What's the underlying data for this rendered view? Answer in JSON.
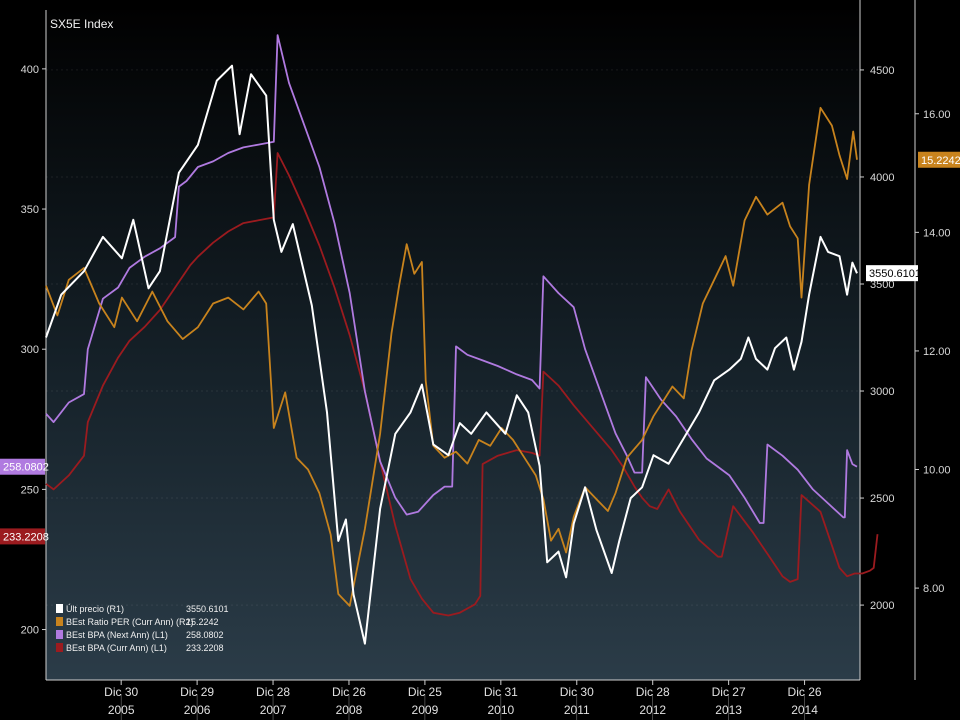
{
  "chart_data": {
    "type": "line",
    "title": "SX5E Index",
    "x_ticks": [
      {
        "label": "Dic 30",
        "year": "2005"
      },
      {
        "label": "Dic 29",
        "year": "2006"
      },
      {
        "label": "Dic 28",
        "year": "2007"
      },
      {
        "label": "Dic 26",
        "year": "2008"
      },
      {
        "label": "Dic 25",
        "year": "2009"
      },
      {
        "label": "Dic 31",
        "year": "2010"
      },
      {
        "label": "Dic 30",
        "year": "2011"
      },
      {
        "label": "Dic 28",
        "year": "2012"
      },
      {
        "label": "Dic 27",
        "year": "2013"
      },
      {
        "label": "Dic 26",
        "year": "2014"
      }
    ],
    "axes": {
      "L1": {
        "ticks": [
          200,
          250,
          300,
          350,
          400
        ],
        "range": [
          182,
          421
        ]
      },
      "R1": {
        "ticks": [
          2000,
          2500,
          3000,
          3500,
          4000,
          4500
        ],
        "range": [
          1650,
          4780
        ]
      },
      "R2": {
        "ticks": [
          "8.00",
          "10.00",
          "12.00",
          "14.00",
          "16.00"
        ],
        "range": [
          6.45,
          17.75
        ]
      }
    },
    "series": [
      {
        "name": "Últ precio",
        "axis": "R1",
        "color": "#ffffff",
        "last_value": "3550.6101",
        "points": [
          [
            2005.0,
            3250
          ],
          [
            2005.2,
            3450
          ],
          [
            2005.5,
            3560
          ],
          [
            2005.75,
            3720
          ],
          [
            2006.0,
            3620
          ],
          [
            2006.15,
            3800
          ],
          [
            2006.35,
            3480
          ],
          [
            2006.5,
            3560
          ],
          [
            2006.75,
            4020
          ],
          [
            2007.0,
            4150
          ],
          [
            2007.25,
            4450
          ],
          [
            2007.45,
            4520
          ],
          [
            2007.55,
            4200
          ],
          [
            2007.7,
            4480
          ],
          [
            2007.9,
            4380
          ],
          [
            2008.0,
            3800
          ],
          [
            2008.1,
            3650
          ],
          [
            2008.25,
            3780
          ],
          [
            2008.5,
            3400
          ],
          [
            2008.7,
            2900
          ],
          [
            2008.85,
            2300
          ],
          [
            2008.95,
            2400
          ],
          [
            2009.05,
            2050
          ],
          [
            2009.2,
            1820
          ],
          [
            2009.4,
            2450
          ],
          [
            2009.6,
            2800
          ],
          [
            2009.8,
            2900
          ],
          [
            2009.95,
            3030
          ],
          [
            2010.1,
            2750
          ],
          [
            2010.3,
            2700
          ],
          [
            2010.45,
            2850
          ],
          [
            2010.6,
            2800
          ],
          [
            2010.8,
            2900
          ],
          [
            2011.05,
            2800
          ],
          [
            2011.2,
            2980
          ],
          [
            2011.35,
            2900
          ],
          [
            2011.5,
            2650
          ],
          [
            2011.6,
            2200
          ],
          [
            2011.75,
            2250
          ],
          [
            2011.85,
            2130
          ],
          [
            2011.95,
            2380
          ],
          [
            2012.1,
            2550
          ],
          [
            2012.25,
            2350
          ],
          [
            2012.45,
            2150
          ],
          [
            2012.55,
            2300
          ],
          [
            2012.7,
            2500
          ],
          [
            2012.85,
            2550
          ],
          [
            2013.0,
            2700
          ],
          [
            2013.2,
            2660
          ],
          [
            2013.4,
            2780
          ],
          [
            2013.6,
            2900
          ],
          [
            2013.8,
            3050
          ],
          [
            2014.0,
            3100
          ],
          [
            2014.15,
            3150
          ],
          [
            2014.25,
            3250
          ],
          [
            2014.35,
            3150
          ],
          [
            2014.5,
            3100
          ],
          [
            2014.6,
            3200
          ],
          [
            2014.75,
            3250
          ],
          [
            2014.85,
            3100
          ],
          [
            2014.95,
            3230
          ],
          [
            2015.05,
            3450
          ],
          [
            2015.2,
            3720
          ],
          [
            2015.3,
            3650
          ],
          [
            2015.45,
            3630
          ],
          [
            2015.55,
            3450
          ],
          [
            2015.62,
            3600
          ],
          [
            2015.68,
            3550
          ]
        ]
      },
      {
        "name": "BEst Ratio PER (Curr Ann)",
        "axis": "R2",
        "color": "#c8831d",
        "last_value": "15.2242",
        "points": [
          [
            2005.0,
            13.1
          ],
          [
            2005.15,
            12.6
          ],
          [
            2005.3,
            13.2
          ],
          [
            2005.5,
            13.4
          ],
          [
            2005.7,
            12.8
          ],
          [
            2005.9,
            12.4
          ],
          [
            2006.0,
            12.9
          ],
          [
            2006.2,
            12.5
          ],
          [
            2006.4,
            13.0
          ],
          [
            2006.6,
            12.5
          ],
          [
            2006.8,
            12.2
          ],
          [
            2007.0,
            12.4
          ],
          [
            2007.2,
            12.8
          ],
          [
            2007.4,
            12.9
          ],
          [
            2007.6,
            12.7
          ],
          [
            2007.8,
            13.0
          ],
          [
            2007.9,
            12.8
          ],
          [
            2008.0,
            10.7
          ],
          [
            2008.15,
            11.3
          ],
          [
            2008.3,
            10.2
          ],
          [
            2008.45,
            10.0
          ],
          [
            2008.6,
            9.6
          ],
          [
            2008.75,
            8.9
          ],
          [
            2008.85,
            7.9
          ],
          [
            2009.0,
            7.7
          ],
          [
            2009.2,
            9.0
          ],
          [
            2009.4,
            10.6
          ],
          [
            2009.55,
            12.3
          ],
          [
            2009.65,
            13.1
          ],
          [
            2009.75,
            13.8
          ],
          [
            2009.85,
            13.3
          ],
          [
            2009.95,
            13.5
          ],
          [
            2010.0,
            11.5
          ],
          [
            2010.1,
            10.4
          ],
          [
            2010.25,
            10.2
          ],
          [
            2010.4,
            10.3
          ],
          [
            2010.55,
            10.1
          ],
          [
            2010.7,
            10.5
          ],
          [
            2010.85,
            10.4
          ],
          [
            2011.0,
            10.7
          ],
          [
            2011.15,
            10.5
          ],
          [
            2011.3,
            10.2
          ],
          [
            2011.45,
            9.9
          ],
          [
            2011.55,
            9.5
          ],
          [
            2011.65,
            8.8
          ],
          [
            2011.75,
            9.0
          ],
          [
            2011.85,
            8.6
          ],
          [
            2011.95,
            9.2
          ],
          [
            2012.1,
            9.7
          ],
          [
            2012.25,
            9.5
          ],
          [
            2012.4,
            9.3
          ],
          [
            2012.5,
            9.6
          ],
          [
            2012.65,
            10.2
          ],
          [
            2012.85,
            10.5
          ],
          [
            2013.0,
            10.9
          ],
          [
            2013.1,
            11.1
          ],
          [
            2013.25,
            11.4
          ],
          [
            2013.4,
            11.2
          ],
          [
            2013.5,
            12.0
          ],
          [
            2013.65,
            12.8
          ],
          [
            2013.8,
            13.2
          ],
          [
            2013.95,
            13.6
          ],
          [
            2014.05,
            13.1
          ],
          [
            2014.2,
            14.2
          ],
          [
            2014.35,
            14.6
          ],
          [
            2014.5,
            14.3
          ],
          [
            2014.7,
            14.5
          ],
          [
            2014.8,
            14.1
          ],
          [
            2014.9,
            13.9
          ],
          [
            2014.95,
            12.9
          ],
          [
            2015.05,
            14.8
          ],
          [
            2015.2,
            16.1
          ],
          [
            2015.35,
            15.8
          ],
          [
            2015.45,
            15.3
          ],
          [
            2015.55,
            14.9
          ],
          [
            2015.63,
            15.7
          ],
          [
            2015.68,
            15.2242
          ]
        ]
      },
      {
        "name": "BEst BPA (Next Ann)",
        "axis": "L1",
        "color": "#b07ae0",
        "last_value": "258.0802",
        "points": [
          [
            2005.0,
            277
          ],
          [
            2005.1,
            274
          ],
          [
            2005.3,
            281
          ],
          [
            2005.5,
            284
          ],
          [
            2005.55,
            300
          ],
          [
            2005.75,
            318
          ],
          [
            2005.95,
            322
          ],
          [
            2006.1,
            329
          ],
          [
            2006.3,
            333
          ],
          [
            2006.5,
            336
          ],
          [
            2006.7,
            340
          ],
          [
            2006.75,
            358
          ],
          [
            2006.85,
            360
          ],
          [
            2007.0,
            365
          ],
          [
            2007.2,
            367
          ],
          [
            2007.4,
            370
          ],
          [
            2007.6,
            372
          ],
          [
            2007.8,
            373
          ],
          [
            2008.0,
            374
          ],
          [
            2008.05,
            412
          ],
          [
            2008.2,
            395
          ],
          [
            2008.4,
            380
          ],
          [
            2008.6,
            365
          ],
          [
            2008.8,
            345
          ],
          [
            2009.0,
            320
          ],
          [
            2009.2,
            285
          ],
          [
            2009.4,
            260
          ],
          [
            2009.6,
            247
          ],
          [
            2009.75,
            241
          ],
          [
            2009.9,
            242
          ],
          [
            2010.1,
            248
          ],
          [
            2010.25,
            251
          ],
          [
            2010.35,
            251
          ],
          [
            2010.4,
            301
          ],
          [
            2010.55,
            298
          ],
          [
            2010.75,
            296
          ],
          [
            2010.95,
            294
          ],
          [
            2011.2,
            291
          ],
          [
            2011.4,
            289
          ],
          [
            2011.5,
            286
          ],
          [
            2011.55,
            326
          ],
          [
            2011.75,
            320
          ],
          [
            2011.95,
            315
          ],
          [
            2012.1,
            300
          ],
          [
            2012.3,
            285
          ],
          [
            2012.5,
            270
          ],
          [
            2012.65,
            262
          ],
          [
            2012.75,
            256
          ],
          [
            2012.85,
            256
          ],
          [
            2012.9,
            290
          ],
          [
            2013.1,
            282
          ],
          [
            2013.3,
            276
          ],
          [
            2013.5,
            268
          ],
          [
            2013.7,
            261
          ],
          [
            2013.85,
            258
          ],
          [
            2014.0,
            255
          ],
          [
            2014.2,
            247
          ],
          [
            2014.4,
            238
          ],
          [
            2014.45,
            238
          ],
          [
            2014.5,
            266
          ],
          [
            2014.7,
            262
          ],
          [
            2014.9,
            257
          ],
          [
            2015.1,
            250
          ],
          [
            2015.3,
            245
          ],
          [
            2015.5,
            240
          ],
          [
            2015.52,
            240
          ],
          [
            2015.55,
            264
          ],
          [
            2015.62,
            259
          ],
          [
            2015.68,
            258.0802
          ]
        ]
      },
      {
        "name": "BEst BPA (Curr Ann)",
        "axis": "L1",
        "color": "#9b1b1f",
        "last_value": "233.2208",
        "points": [
          [
            2005.0,
            252
          ],
          [
            2005.1,
            250
          ],
          [
            2005.3,
            255
          ],
          [
            2005.5,
            262
          ],
          [
            2005.55,
            274
          ],
          [
            2005.75,
            287
          ],
          [
            2005.95,
            297
          ],
          [
            2006.1,
            303
          ],
          [
            2006.3,
            308
          ],
          [
            2006.5,
            314
          ],
          [
            2006.7,
            322
          ],
          [
            2006.9,
            330
          ],
          [
            2007.0,
            333
          ],
          [
            2007.2,
            338
          ],
          [
            2007.4,
            342
          ],
          [
            2007.6,
            345
          ],
          [
            2007.8,
            346
          ],
          [
            2008.0,
            347
          ],
          [
            2008.05,
            370
          ],
          [
            2008.2,
            362
          ],
          [
            2008.4,
            350
          ],
          [
            2008.6,
            337
          ],
          [
            2008.8,
            322
          ],
          [
            2009.0,
            305
          ],
          [
            2009.2,
            285
          ],
          [
            2009.4,
            260
          ],
          [
            2009.6,
            237
          ],
          [
            2009.8,
            218
          ],
          [
            2009.95,
            211
          ],
          [
            2010.1,
            206
          ],
          [
            2010.3,
            205
          ],
          [
            2010.45,
            206
          ],
          [
            2010.65,
            209
          ],
          [
            2010.72,
            212
          ],
          [
            2010.75,
            259
          ],
          [
            2010.95,
            262
          ],
          [
            2011.2,
            264
          ],
          [
            2011.4,
            263
          ],
          [
            2011.5,
            262
          ],
          [
            2011.55,
            292
          ],
          [
            2011.75,
            287
          ],
          [
            2011.95,
            280
          ],
          [
            2012.2,
            272
          ],
          [
            2012.45,
            264
          ],
          [
            2012.6,
            258
          ],
          [
            2012.75,
            251
          ],
          [
            2012.85,
            247
          ],
          [
            2012.95,
            244
          ],
          [
            2013.05,
            243
          ],
          [
            2013.2,
            250
          ],
          [
            2013.35,
            242
          ],
          [
            2013.6,
            232
          ],
          [
            2013.85,
            226
          ],
          [
            2013.9,
            226
          ],
          [
            2014.05,
            244
          ],
          [
            2014.3,
            235
          ],
          [
            2014.5,
            227
          ],
          [
            2014.7,
            219
          ],
          [
            2014.8,
            217
          ],
          [
            2014.9,
            218
          ],
          [
            2014.95,
            248
          ],
          [
            2015.2,
            242
          ],
          [
            2015.35,
            230
          ],
          [
            2015.45,
            222
          ],
          [
            2015.55,
            219
          ],
          [
            2015.65,
            220
          ],
          [
            2015.75,
            220
          ],
          [
            2015.85,
            221
          ],
          [
            2015.9,
            222
          ],
          [
            2015.95,
            234
          ],
          [
            2015.68,
            233.2208
          ]
        ]
      }
    ]
  }
}
